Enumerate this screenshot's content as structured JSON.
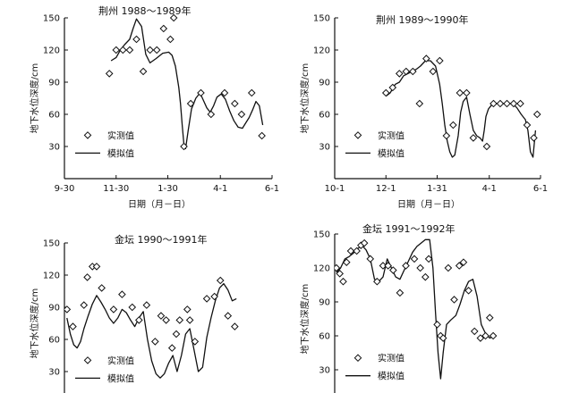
{
  "chart_data": [
    {
      "type": "scatter",
      "title": "荆州 1988～1989年",
      "ylabel": "地下水位深度/cm",
      "xlabel": "日期（月－日）",
      "xlim": [
        0,
        245
      ],
      "ylim": [
        0,
        150
      ],
      "x_ticks": [
        0,
        61,
        122,
        184,
        245
      ],
      "x_tick_labels": [
        "9-30",
        "11-30",
        "1-30",
        "4-1",
        "6-1"
      ],
      "y_ticks": [
        30,
        60,
        90,
        120,
        150
      ],
      "y_tick_labels": [
        "30",
        "60",
        "90",
        "120",
        "150"
      ],
      "legend": [
        "实测值",
        "模拟值"
      ],
      "series": [
        {
          "name": "实测值",
          "kind": "points",
          "x": [
            53,
            61,
            69,
            77,
            85,
            93,
            101,
            109,
            117,
            125,
            129,
            141,
            149,
            161,
            173,
            189,
            201,
            209,
            221,
            233
          ],
          "y": [
            98,
            120,
            120,
            120,
            130,
            100,
            120,
            120,
            140,
            130,
            150,
            30,
            70,
            80,
            60,
            80,
            70,
            60,
            80,
            40
          ]
        },
        {
          "name": "模拟值",
          "kind": "line",
          "x": [
            55,
            61,
            66,
            71,
            77,
            81,
            85,
            91,
            96,
            101,
            108,
            116,
            123,
            127,
            131,
            133,
            135,
            137,
            139,
            141,
            143,
            146,
            150,
            155,
            160,
            164,
            168,
            172,
            176,
            180,
            185,
            190,
            195,
            200,
            205,
            210,
            214,
            218,
            222,
            226,
            230,
            234
          ],
          "y": [
            110,
            113,
            120,
            125,
            130,
            140,
            149,
            142,
            116,
            108,
            112,
            117,
            118,
            115,
            105,
            95,
            85,
            70,
            50,
            32,
            28,
            45,
            65,
            75,
            80,
            73,
            66,
            62,
            68,
            76,
            79,
            74,
            63,
            54,
            48,
            47,
            52,
            57,
            64,
            72,
            68,
            50
          ]
        }
      ]
    },
    {
      "type": "scatter",
      "title": "荆州 1989～1990年",
      "ylabel": "地下水位深度/cm",
      "xlabel": "日期（月－日）",
      "xlim": [
        0,
        245
      ],
      "ylim": [
        0,
        150
      ],
      "x_ticks": [
        0,
        61,
        122,
        184,
        245
      ],
      "x_tick_labels": [
        "10-1",
        "12-1",
        "1-31",
        "4-1",
        "6-1"
      ],
      "y_ticks": [
        30,
        60,
        90,
        120,
        150
      ],
      "y_tick_labels": [
        "30",
        "60",
        "90",
        "120",
        "150"
      ],
      "legend": [
        "实测值",
        "模拟值"
      ],
      "series": [
        {
          "name": "实测值",
          "kind": "points",
          "x": [
            61,
            69,
            77,
            85,
            93,
            101,
            109,
            117,
            125,
            133,
            141,
            149,
            157,
            165,
            181,
            189,
            197,
            205,
            213,
            221,
            229,
            237,
            241
          ],
          "y": [
            80,
            85,
            98,
            100,
            100,
            70,
            112,
            100,
            110,
            40,
            50,
            80,
            80,
            38,
            30,
            70,
            70,
            70,
            70,
            70,
            50,
            38,
            60
          ]
        },
        {
          "name": "模拟值",
          "kind": "line",
          "x": [
            61,
            66,
            72,
            77,
            82,
            87,
            92,
            97,
            102,
            108,
            114,
            120,
            125,
            128,
            131,
            134,
            137,
            140,
            143,
            147,
            150,
            153,
            157,
            161,
            165,
            169,
            173,
            176,
            178,
            180,
            183,
            187,
            192,
            197,
            202,
            207,
            212,
            217,
            222,
            227,
            230,
            233,
            236,
            239
          ],
          "y": [
            77,
            80,
            88,
            90,
            96,
            98,
            100,
            102,
            105,
            110,
            110,
            105,
            88,
            70,
            50,
            35,
            25,
            20,
            22,
            40,
            62,
            72,
            76,
            60,
            45,
            40,
            38,
            35,
            45,
            58,
            65,
            69,
            70,
            70,
            70,
            70,
            70,
            66,
            60,
            55,
            45,
            25,
            20,
            45
          ]
        }
      ]
    },
    {
      "type": "scatter",
      "title": "金坛 1990～1991年",
      "ylabel": "地下水位深度/cm",
      "xlabel": "",
      "xlim": [
        0,
        245
      ],
      "ylim": [
        0,
        150
      ],
      "x_ticks": [],
      "x_tick_labels": [],
      "y_ticks": [
        30,
        60,
        90,
        120,
        150
      ],
      "y_tick_labels": [
        "30",
        "60",
        "90",
        "120",
        "150"
      ],
      "legend": [
        "实测值",
        "模拟值"
      ],
      "series": [
        {
          "name": "实测值",
          "kind": "points",
          "x": [
            3,
            10,
            23,
            27,
            33,
            38,
            44,
            58,
            68,
            80,
            88,
            97,
            107,
            114,
            120,
            127,
            132,
            136,
            145,
            148,
            154,
            168,
            177,
            184,
            193,
            201
          ],
          "y": [
            88,
            72,
            92,
            118,
            128,
            128,
            108,
            88,
            102,
            90,
            78,
            92,
            58,
            82,
            78,
            52,
            65,
            78,
            88,
            78,
            58,
            98,
            100,
            115,
            82,
            72
          ]
        },
        {
          "name": "模拟值",
          "kind": "line",
          "x": [
            3,
            7,
            11,
            15,
            19,
            23,
            28,
            33,
            38,
            43,
            48,
            53,
            58,
            63,
            68,
            73,
            78,
            83,
            88,
            93,
            98,
            103,
            108,
            113,
            118,
            123,
            128,
            133,
            138,
            143,
            148,
            153,
            158,
            163,
            168,
            173,
            178,
            183,
            188,
            193,
            198,
            203
          ],
          "y": [
            80,
            65,
            55,
            52,
            58,
            70,
            82,
            93,
            101,
            95,
            88,
            80,
            75,
            80,
            88,
            85,
            78,
            72,
            80,
            86,
            60,
            40,
            28,
            24,
            28,
            38,
            45,
            30,
            45,
            65,
            70,
            50,
            30,
            34,
            62,
            80,
            96,
            108,
            112,
            106,
            96,
            98
          ]
        }
      ]
    },
    {
      "type": "scatter",
      "title": "金坛 1991～1992年",
      "ylabel": "地下水位深度/cm",
      "xlabel": "",
      "xlim": [
        0,
        245
      ],
      "ylim": [
        0,
        150
      ],
      "x_ticks": [],
      "x_tick_labels": [],
      "y_ticks": [
        30,
        60,
        90,
        120,
        150
      ],
      "y_tick_labels": [
        "30",
        "60",
        "90",
        "120",
        "150"
      ],
      "legend": [
        "实测值",
        "模拟值"
      ],
      "series": [
        {
          "name": "实测值",
          "kind": "points",
          "x": [
            2,
            6,
            10,
            14,
            19,
            26,
            31,
            35,
            42,
            50,
            57,
            63,
            69,
            77,
            84,
            94,
            101,
            107,
            111,
            121,
            125,
            128,
            134,
            141,
            147,
            152,
            158,
            165,
            172,
            178,
            183,
            187
          ],
          "y": [
            120,
            115,
            108,
            125,
            135,
            135,
            140,
            142,
            128,
            108,
            122,
            122,
            118,
            98,
            122,
            128,
            120,
            112,
            128,
            70,
            60,
            58,
            120,
            92,
            122,
            125,
            100,
            64,
            58,
            60,
            76,
            60
          ]
        },
        {
          "name": "模拟值",
          "kind": "line",
          "x": [
            2,
            7,
            12,
            17,
            22,
            27,
            32,
            37,
            42,
            47,
            52,
            57,
            62,
            67,
            72,
            77,
            82,
            87,
            92,
            97,
            102,
            107,
            112,
            116,
            119,
            122,
            125,
            128,
            132,
            137,
            143,
            148,
            153,
            158,
            163,
            168,
            173,
            178,
            183,
            188
          ],
          "y": [
            116,
            120,
            128,
            130,
            133,
            137,
            140,
            136,
            128,
            110,
            108,
            112,
            128,
            120,
            112,
            110,
            118,
            126,
            134,
            139,
            142,
            145,
            145,
            120,
            80,
            45,
            22,
            45,
            70,
            74,
            78,
            88,
            100,
            108,
            110,
            95,
            70,
            62,
            58,
            60
          ]
        }
      ]
    }
  ]
}
